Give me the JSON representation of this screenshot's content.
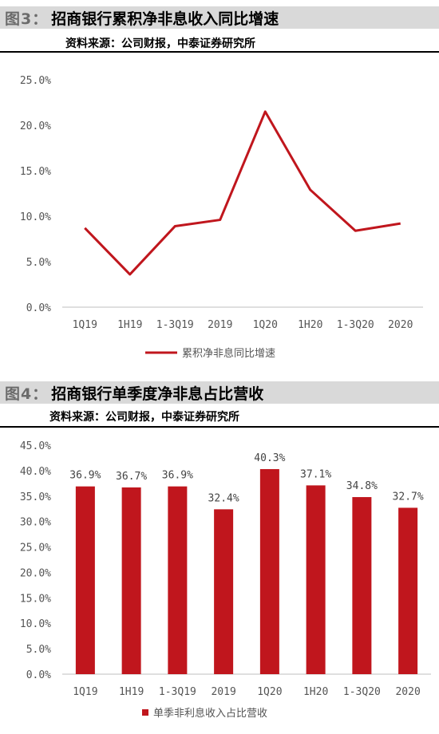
{
  "figures": [
    {
      "number": "图3：",
      "title": "招商银行累积净非息收入同比增速",
      "source": "资料来源：公司财报，中泰证券研究所"
    },
    {
      "number": "图4：",
      "title": "招商银行单季度净非息占比营收",
      "source": "资料来源：公司财报，中泰证券研究所"
    }
  ],
  "chart_data": [
    {
      "type": "line",
      "categories": [
        "1Q19",
        "1H19",
        "1-3Q19",
        "2019",
        "1Q20",
        "1H20",
        "1-3Q20",
        "2020"
      ],
      "series": [
        {
          "name": "累积净非息同比增速",
          "values": [
            8.7,
            3.6,
            8.9,
            9.6,
            21.5,
            12.9,
            8.4,
            9.2
          ]
        }
      ],
      "yticks": [
        "0.0%",
        "5.0%",
        "10.0%",
        "15.0%",
        "20.0%",
        "25.0%"
      ],
      "ylim": [
        0,
        25
      ],
      "grid": false,
      "legend": "bottom",
      "color": "#c0161d"
    },
    {
      "type": "bar",
      "categories": [
        "1Q19",
        "1H19",
        "1-3Q19",
        "2019",
        "1Q20",
        "1H20",
        "1-3Q20",
        "2020"
      ],
      "series": [
        {
          "name": "单季非利息收入占比营收",
          "values": [
            36.9,
            36.7,
            36.9,
            32.4,
            40.3,
            37.1,
            34.8,
            32.7
          ]
        }
      ],
      "data_labels": [
        "36.9%",
        "36.7%",
        "36.9%",
        "32.4%",
        "40.3%",
        "37.1%",
        "34.8%",
        "32.7%"
      ],
      "yticks": [
        "0.0%",
        "5.0%",
        "10.0%",
        "15.0%",
        "20.0%",
        "25.0%",
        "30.0%",
        "35.0%",
        "40.0%",
        "45.0%"
      ],
      "ylim": [
        0,
        45
      ],
      "grid": false,
      "legend": "bottom",
      "color": "#c0161d"
    }
  ]
}
